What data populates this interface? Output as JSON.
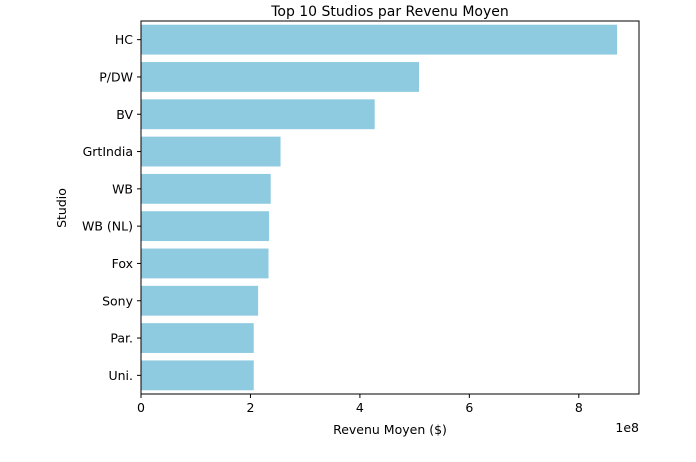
{
  "chart_data": {
    "type": "bar",
    "orientation": "horizontal",
    "title": "Top 10 Studios par Revenu Moyen",
    "xlabel": "Revenu Moyen ($)",
    "ylabel": "Studio",
    "x_offset_label": "1e8",
    "xlim": [
      0,
      9.1
    ],
    "xticks": [
      0,
      2,
      4,
      6,
      8
    ],
    "categories": [
      "HC",
      "P/DW",
      "BV",
      "GrtIndia",
      "WB",
      "WB (NL)",
      "Fox",
      "Sony",
      "Par.",
      "Uni."
    ],
    "values": [
      8.7,
      5.08,
      4.27,
      2.55,
      2.37,
      2.34,
      2.33,
      2.14,
      2.06,
      2.06
    ],
    "values_unit_multiplier": 100000000,
    "bar_color": "#8fcbe0",
    "grid": false,
    "legend": false
  }
}
